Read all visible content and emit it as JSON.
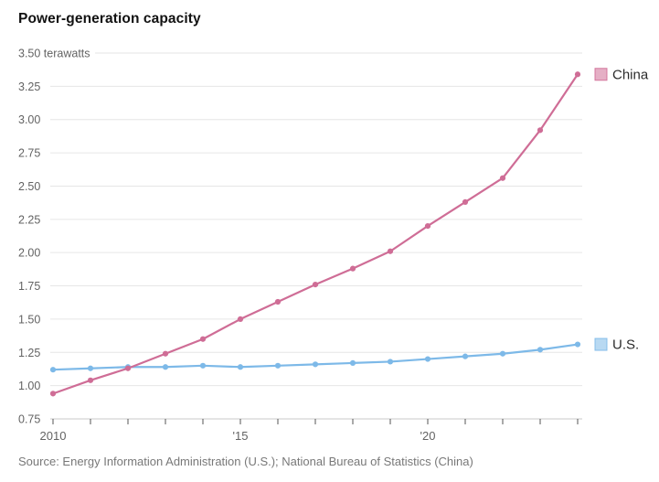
{
  "title": "Power-generation capacity",
  "source": "Source: Energy Information Administration (U.S.); National Bureau of Statistics (China)",
  "colors": {
    "china": "#cf6d96",
    "us": "#7db9e8",
    "grid": "#e6e6e6",
    "axis_line": "#c9c9c9",
    "tick_mark": "#555555",
    "axis_text": "#636363",
    "legend_text": "#2b2b2b",
    "title_text": "#121212",
    "source_text": "#787878",
    "background": "#ffffff"
  },
  "chart_data": {
    "type": "line",
    "title": "Power-generation capacity",
    "unit_label": "terawatts",
    "ylabel": "terawatts",
    "ylim": [
      0.75,
      3.5
    ],
    "y_ticks": [
      0.75,
      1.0,
      1.25,
      1.5,
      1.75,
      2.0,
      2.25,
      2.5,
      2.75,
      3.0,
      3.25,
      3.5
    ],
    "grid": true,
    "legend_position": "right-of-line-end",
    "x": [
      2010,
      2011,
      2012,
      2013,
      2014,
      2015,
      2016,
      2017,
      2018,
      2019,
      2020,
      2021,
      2022,
      2023,
      2024
    ],
    "x_tick_labels": [
      {
        "year": 2010,
        "label": "2010"
      },
      {
        "year": 2015,
        "label": "'15"
      },
      {
        "year": 2020,
        "label": "'20"
      }
    ],
    "series": [
      {
        "name": "China",
        "color": "#cf6d96",
        "values": [
          0.94,
          1.04,
          1.13,
          1.24,
          1.35,
          1.5,
          1.63,
          1.76,
          1.88,
          2.01,
          2.2,
          2.38,
          2.56,
          2.92,
          3.34
        ]
      },
      {
        "name": "U.S.",
        "color": "#7db9e8",
        "values": [
          1.12,
          1.13,
          1.14,
          1.14,
          1.15,
          1.14,
          1.15,
          1.16,
          1.17,
          1.18,
          1.2,
          1.22,
          1.24,
          1.27,
          1.31
        ]
      }
    ]
  }
}
